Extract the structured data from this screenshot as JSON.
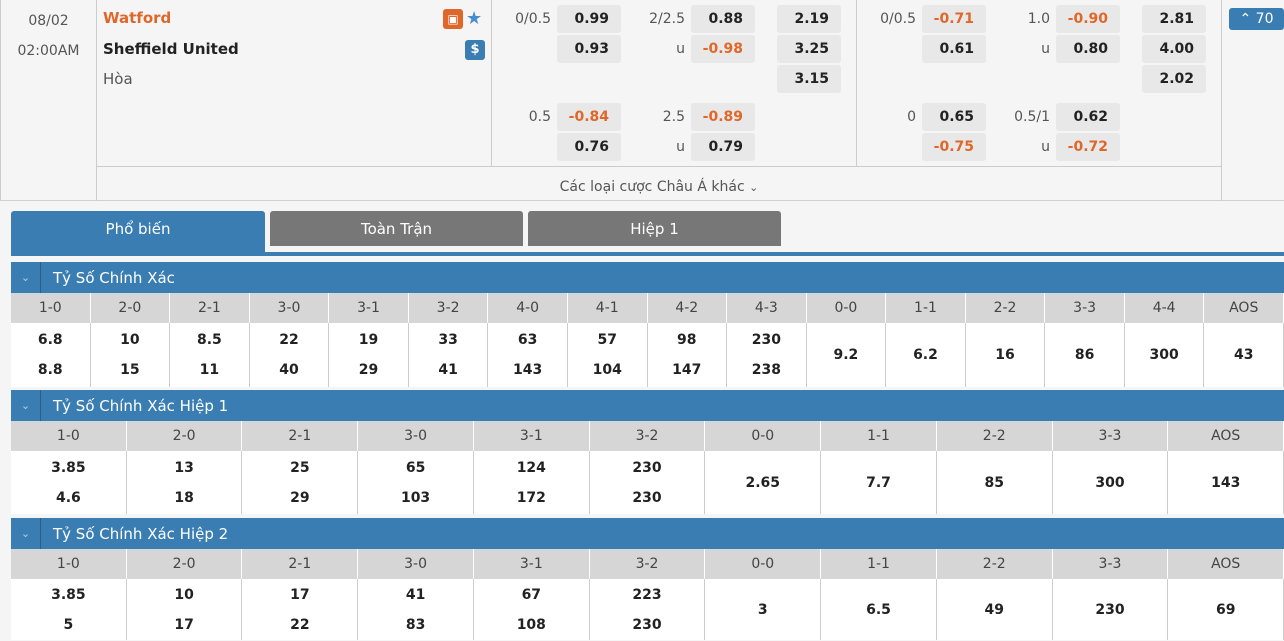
{
  "match": {
    "date": "08/02",
    "time": "02:00AM",
    "home": "Watford",
    "away": "Sheffield United",
    "draw": "Hòa",
    "home_color": "#e0672a",
    "expand_count": "70",
    "more_label": "Các loại cược Châu Á khác"
  },
  "odds": {
    "full": {
      "hdp": {
        "line": "0/0.5",
        "home": "0.99",
        "away": "0.93"
      },
      "ou": {
        "line": "2/2.5",
        "over": "0.88",
        "u": "u",
        "under": "-0.98"
      },
      "x12": [
        "2.19",
        "3.25",
        "3.15"
      ],
      "hdp2": {
        "line": "0.5",
        "home": "-0.84",
        "away": "0.76"
      },
      "ou2": {
        "line": "2.5",
        "over": "-0.89",
        "u": "u",
        "under": "0.79"
      }
    },
    "half": {
      "hdp": {
        "line": "0/0.5",
        "home": "-0.71",
        "away": "0.61"
      },
      "ou": {
        "line": "1.0",
        "over": "-0.90",
        "u": "u",
        "under": "0.80"
      },
      "x12": [
        "2.81",
        "4.00",
        "2.02"
      ],
      "hdp2": {
        "line": "0",
        "home": "0.65",
        "away": "-0.75"
      },
      "ou2": {
        "line": "0.5/1",
        "over": "0.62",
        "u": "u",
        "under": "-0.72"
      }
    }
  },
  "tabs": [
    {
      "label": "Phổ biến",
      "selected": true
    },
    {
      "label": "Toàn Trận"
    },
    {
      "label": "Hiệp 1"
    }
  ],
  "sections": [
    {
      "title": "Tỷ Số Chính Xác",
      "cols": [
        [
          "1-0",
          "6.8",
          "8.8"
        ],
        [
          "2-0",
          "10",
          "15"
        ],
        [
          "2-1",
          "8.5",
          "11"
        ],
        [
          "3-0",
          "22",
          "40"
        ],
        [
          "3-1",
          "19",
          "29"
        ],
        [
          "3-2",
          "33",
          "41"
        ],
        [
          "4-0",
          "63",
          "143"
        ],
        [
          "4-1",
          "57",
          "104"
        ],
        [
          "4-2",
          "98",
          "147"
        ],
        [
          "4-3",
          "230",
          "238"
        ],
        [
          "0-0",
          "9.2"
        ],
        [
          "1-1",
          "6.2"
        ],
        [
          "2-2",
          "16"
        ],
        [
          "3-3",
          "86"
        ],
        [
          "4-4",
          "300"
        ],
        [
          "AOS",
          "43"
        ]
      ]
    },
    {
      "title": "Tỷ Số Chính Xác Hiệp 1",
      "cols": [
        [
          "1-0",
          "3.85",
          "4.6"
        ],
        [
          "2-0",
          "13",
          "18"
        ],
        [
          "2-1",
          "25",
          "29"
        ],
        [
          "3-0",
          "65",
          "103"
        ],
        [
          "3-1",
          "124",
          "172"
        ],
        [
          "3-2",
          "230",
          "230"
        ],
        [
          "0-0",
          "2.65"
        ],
        [
          "1-1",
          "7.7"
        ],
        [
          "2-2",
          "85"
        ],
        [
          "3-3",
          "300"
        ],
        [
          "AOS",
          "143"
        ]
      ]
    },
    {
      "title": "Tỷ Số Chính Xác Hiệp 2",
      "cols": [
        [
          "1-0",
          "3.85",
          "5"
        ],
        [
          "2-0",
          "10",
          "17"
        ],
        [
          "2-1",
          "17",
          "22"
        ],
        [
          "3-0",
          "41",
          "83"
        ],
        [
          "3-1",
          "67",
          "108"
        ],
        [
          "3-2",
          "223",
          "230"
        ],
        [
          "0-0",
          "3"
        ],
        [
          "1-1",
          "6.5"
        ],
        [
          "2-2",
          "49"
        ],
        [
          "3-3",
          "230"
        ],
        [
          "AOS",
          "69"
        ]
      ]
    }
  ]
}
